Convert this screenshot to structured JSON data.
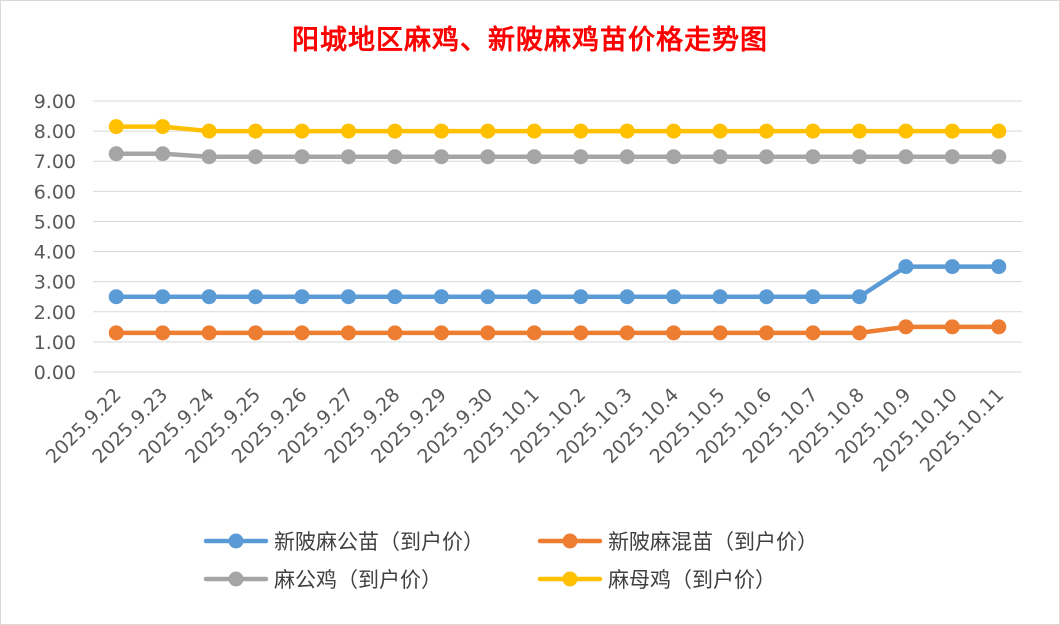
{
  "chart_data": {
    "type": "line",
    "title": "阳城地区麻鸡、新陂麻鸡苗价格走势图",
    "xlabel": "",
    "ylabel": "",
    "ylim": [
      0,
      9
    ],
    "yticks": [
      "0.00",
      "1.00",
      "2.00",
      "3.00",
      "4.00",
      "5.00",
      "6.00",
      "7.00",
      "8.00",
      "9.00"
    ],
    "grid": true,
    "legend_position": "bottom",
    "categories": [
      "2025.9.22",
      "2025.9.23",
      "2025.9.24",
      "2025.9.25",
      "2025.9.26",
      "2025.9.27",
      "2025.9.28",
      "2025.9.29",
      "2025.9.30",
      "2025.10.1",
      "2025.10.2",
      "2025.10.3",
      "2025.10.4",
      "2025.10.5",
      "2025.10.6",
      "2025.10.7",
      "2025.10.8",
      "2025.10.9",
      "2025.10.10",
      "2025.10.11"
    ],
    "series": [
      {
        "name": "新陂麻公苗（到户价）",
        "color": "#5b9bd5",
        "values": [
          2.5,
          2.5,
          2.5,
          2.5,
          2.5,
          2.5,
          2.5,
          2.5,
          2.5,
          2.5,
          2.5,
          2.5,
          2.5,
          2.5,
          2.5,
          2.5,
          2.5,
          3.5,
          3.5,
          3.5
        ]
      },
      {
        "name": "新陂麻混苗（到户价）",
        "color": "#ed7d31",
        "values": [
          1.3,
          1.3,
          1.3,
          1.3,
          1.3,
          1.3,
          1.3,
          1.3,
          1.3,
          1.3,
          1.3,
          1.3,
          1.3,
          1.3,
          1.3,
          1.3,
          1.3,
          1.5,
          1.5,
          1.5
        ]
      },
      {
        "name": "麻公鸡（到户价）",
        "color": "#a5a5a5",
        "values": [
          7.25,
          7.25,
          7.15,
          7.15,
          7.15,
          7.15,
          7.15,
          7.15,
          7.15,
          7.15,
          7.15,
          7.15,
          7.15,
          7.15,
          7.15,
          7.15,
          7.15,
          7.15,
          7.15,
          7.15
        ]
      },
      {
        "name": "麻母鸡（到户价）",
        "color": "#ffc000",
        "values": [
          8.15,
          8.15,
          8.0,
          8.0,
          8.0,
          8.0,
          8.0,
          8.0,
          8.0,
          8.0,
          8.0,
          8.0,
          8.0,
          8.0,
          8.0,
          8.0,
          8.0,
          8.0,
          8.0,
          8.0
        ]
      }
    ]
  }
}
